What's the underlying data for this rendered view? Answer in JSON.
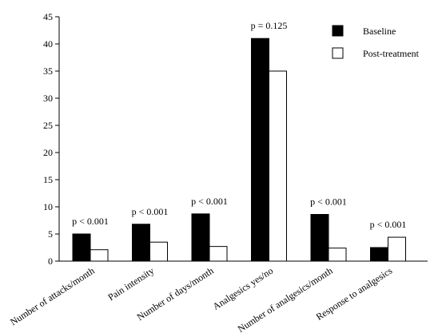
{
  "chart_data": {
    "type": "bar",
    "title": "",
    "xlabel": "",
    "ylabel": "",
    "ylim": [
      0,
      45
    ],
    "yticks": [
      0,
      5,
      10,
      15,
      20,
      25,
      30,
      35,
      40,
      45
    ],
    "grid": false,
    "legend_position": "top-right",
    "categories": [
      "Number of attacks/month",
      "Pain intensity",
      "Number of days/month",
      "Analgesics  yes/no",
      "Number of analgesics/month",
      "Response to analgesics"
    ],
    "series": [
      {
        "name": "Baseline",
        "color": "#000000",
        "values": [
          5.0,
          6.8,
          8.7,
          41.0,
          8.6,
          2.5
        ]
      },
      {
        "name": "Post-treatment",
        "color": "#ffffff",
        "values": [
          2.1,
          3.5,
          2.7,
          35.0,
          2.4,
          4.4
        ]
      }
    ],
    "annotations": [
      "p < 0.001",
      "p < 0.001",
      "p < 0.001",
      "p = 0.125",
      "p < 0.001",
      "p < 0.001"
    ]
  }
}
